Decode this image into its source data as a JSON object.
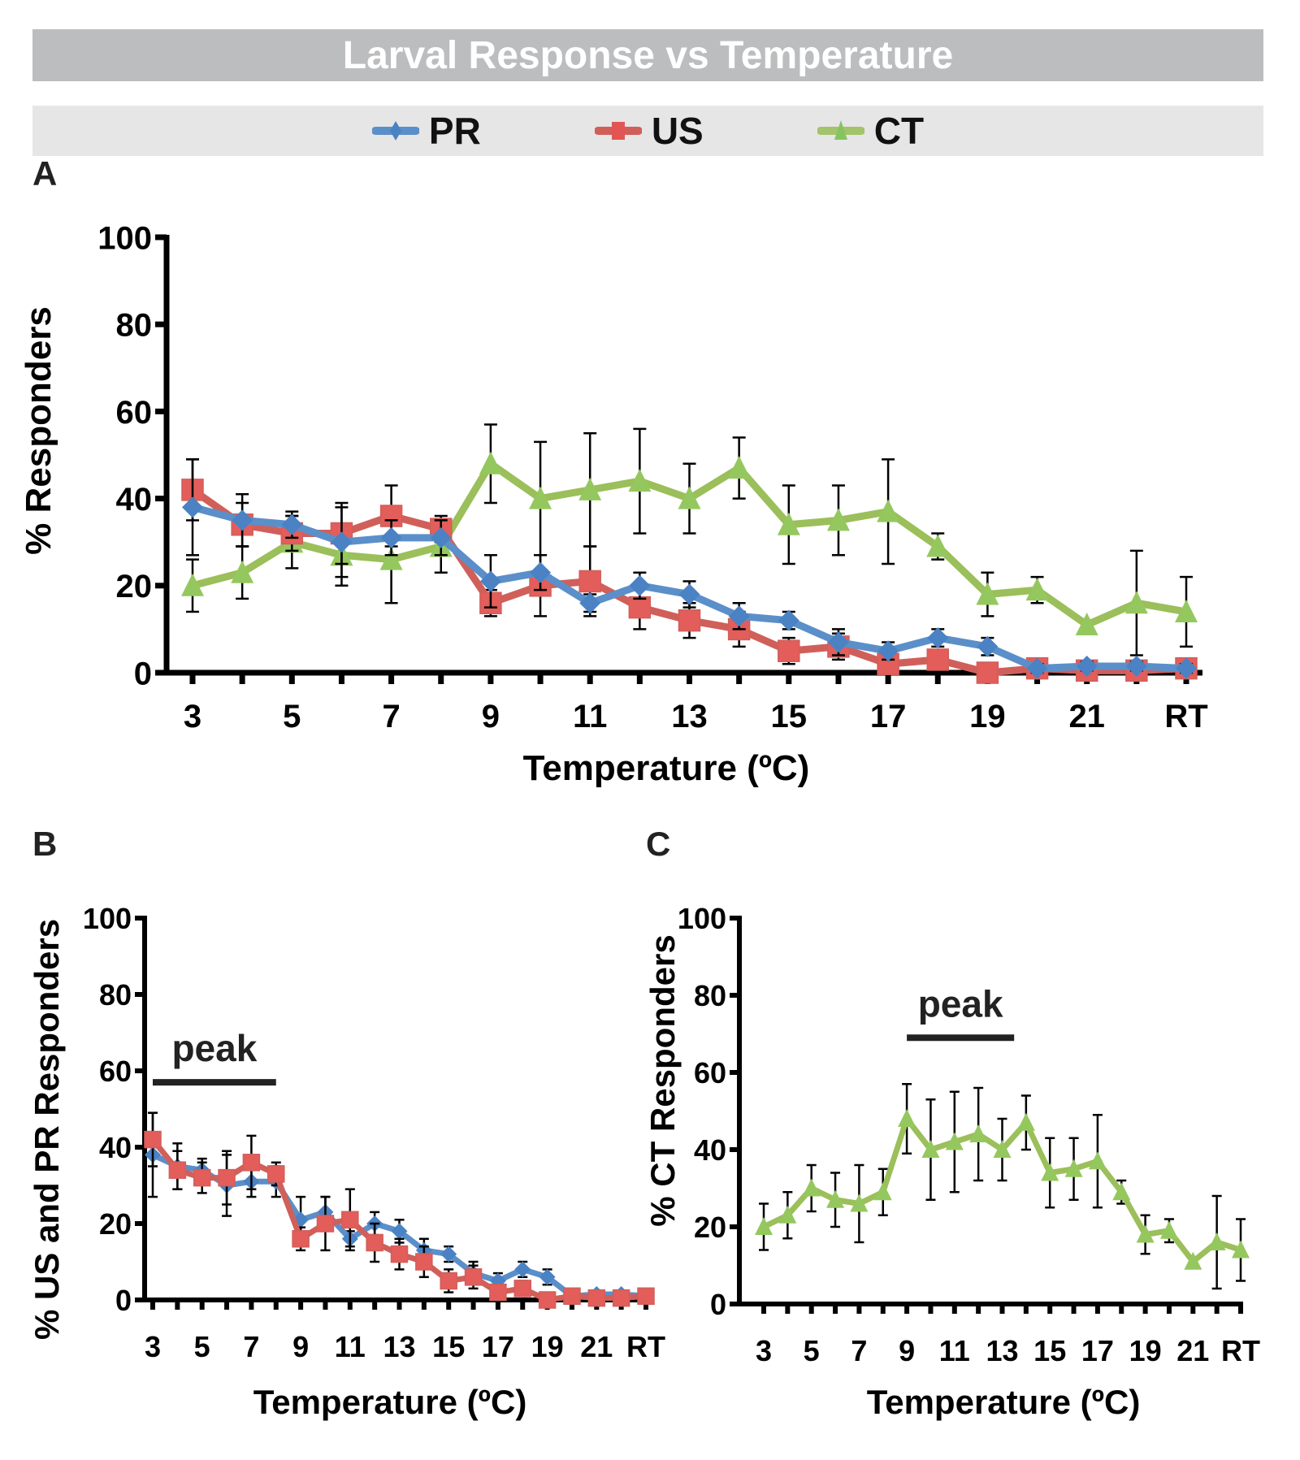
{
  "title": "Larval Response vs Temperature",
  "legend": [
    {
      "label": "PR",
      "color": "#5b8fc9",
      "marker": "diamond"
    },
    {
      "label": "US",
      "color": "#d9534f",
      "marker": "square"
    },
    {
      "label": "CT",
      "color": "#9bbf5a",
      "marker": "triangle"
    }
  ],
  "panels": {
    "a": "A",
    "b": "B",
    "c": "C"
  },
  "chart_data": [
    {
      "id": "A",
      "type": "line",
      "title": "",
      "xlabel": "Temperature (ºC)",
      "ylabel": "%  Responders",
      "ylim": [
        0,
        100
      ],
      "yticks": [
        0,
        20,
        40,
        60,
        80,
        100
      ],
      "x": [
        "3",
        "4",
        "5",
        "6",
        "7",
        "8",
        "9",
        "10",
        "11",
        "12",
        "13",
        "14",
        "15",
        "16",
        "17",
        "18",
        "19",
        "20",
        "21",
        "22",
        "RT"
      ],
      "xtick_labels": [
        "3",
        "5",
        "7",
        "9",
        "11",
        "13",
        "15",
        "17",
        "19",
        "21",
        "RT"
      ],
      "grid": false,
      "series": [
        {
          "name": "PR",
          "color": "#5b8fc9",
          "marker": "diamond",
          "values": [
            38,
            35,
            34,
            30,
            31,
            31,
            21,
            23,
            16,
            20,
            18,
            13,
            12,
            7,
            5,
            8,
            6,
            1,
            1.5,
            1.5,
            1
          ],
          "err": [
            11,
            6,
            3,
            8,
            4,
            4,
            6,
            4,
            2,
            3,
            3,
            3,
            2,
            3,
            2,
            2,
            2,
            1,
            1,
            1,
            1
          ]
        },
        {
          "name": "US",
          "color": "#d9534f",
          "marker": "square",
          "values": [
            42,
            34,
            32,
            32,
            36,
            33,
            16,
            20,
            21,
            15,
            12,
            10,
            5,
            6,
            2,
            3,
            0,
            1,
            0.5,
            0.5,
            1
          ],
          "err": [
            7,
            5,
            4,
            7,
            7,
            3,
            3,
            7,
            8,
            5,
            4,
            4,
            3,
            3,
            1,
            2,
            1,
            1,
            1,
            1,
            1
          ]
        },
        {
          "name": "CT",
          "color": "#9bbf5a",
          "marker": "triangle",
          "values": [
            20,
            23,
            30,
            27,
            26,
            29,
            48,
            40,
            42,
            44,
            40,
            47,
            34,
            35,
            37,
            29,
            18,
            19,
            11,
            16,
            14
          ],
          "err": [
            6,
            6,
            6,
            7,
            10,
            6,
            9,
            13,
            13,
            12,
            8,
            7,
            9,
            8,
            12,
            3,
            5,
            3,
            1,
            12,
            8
          ]
        }
      ]
    },
    {
      "id": "B",
      "type": "line",
      "xlabel": "Temperature (ºC)",
      "ylabel": "% US and PR Responders",
      "ylim": [
        0,
        100
      ],
      "yticks": [
        0,
        20,
        40,
        60,
        80,
        100
      ],
      "x": [
        "3",
        "4",
        "5",
        "6",
        "7",
        "8",
        "9",
        "10",
        "11",
        "12",
        "13",
        "14",
        "15",
        "16",
        "17",
        "18",
        "19",
        "20",
        "21",
        "22",
        "RT"
      ],
      "xtick_labels": [
        "3",
        "5",
        "7",
        "9",
        "11",
        "13",
        "15",
        "17",
        "19",
        "21",
        "RT"
      ],
      "annotation": {
        "text": "peak",
        "from": "3",
        "to": "8",
        "y": 57
      },
      "series_ref": [
        "PR",
        "US"
      ]
    },
    {
      "id": "C",
      "type": "line",
      "xlabel": "Temperature (ºC)",
      "ylabel": "% CT Responders",
      "ylim": [
        0,
        100
      ],
      "yticks": [
        0,
        20,
        40,
        60,
        80,
        100
      ],
      "x": [
        "3",
        "4",
        "5",
        "6",
        "7",
        "8",
        "9",
        "10",
        "11",
        "12",
        "13",
        "14",
        "15",
        "16",
        "17",
        "18",
        "19",
        "20",
        "21",
        "22",
        "RT"
      ],
      "xtick_labels": [
        "3",
        "5",
        "7",
        "9",
        "11",
        "13",
        "15",
        "17",
        "19",
        "21",
        "RT"
      ],
      "annotation": {
        "text": "peak",
        "from": "9",
        "to": "13.5",
        "y": 69
      },
      "series_ref": [
        "CT"
      ]
    }
  ]
}
